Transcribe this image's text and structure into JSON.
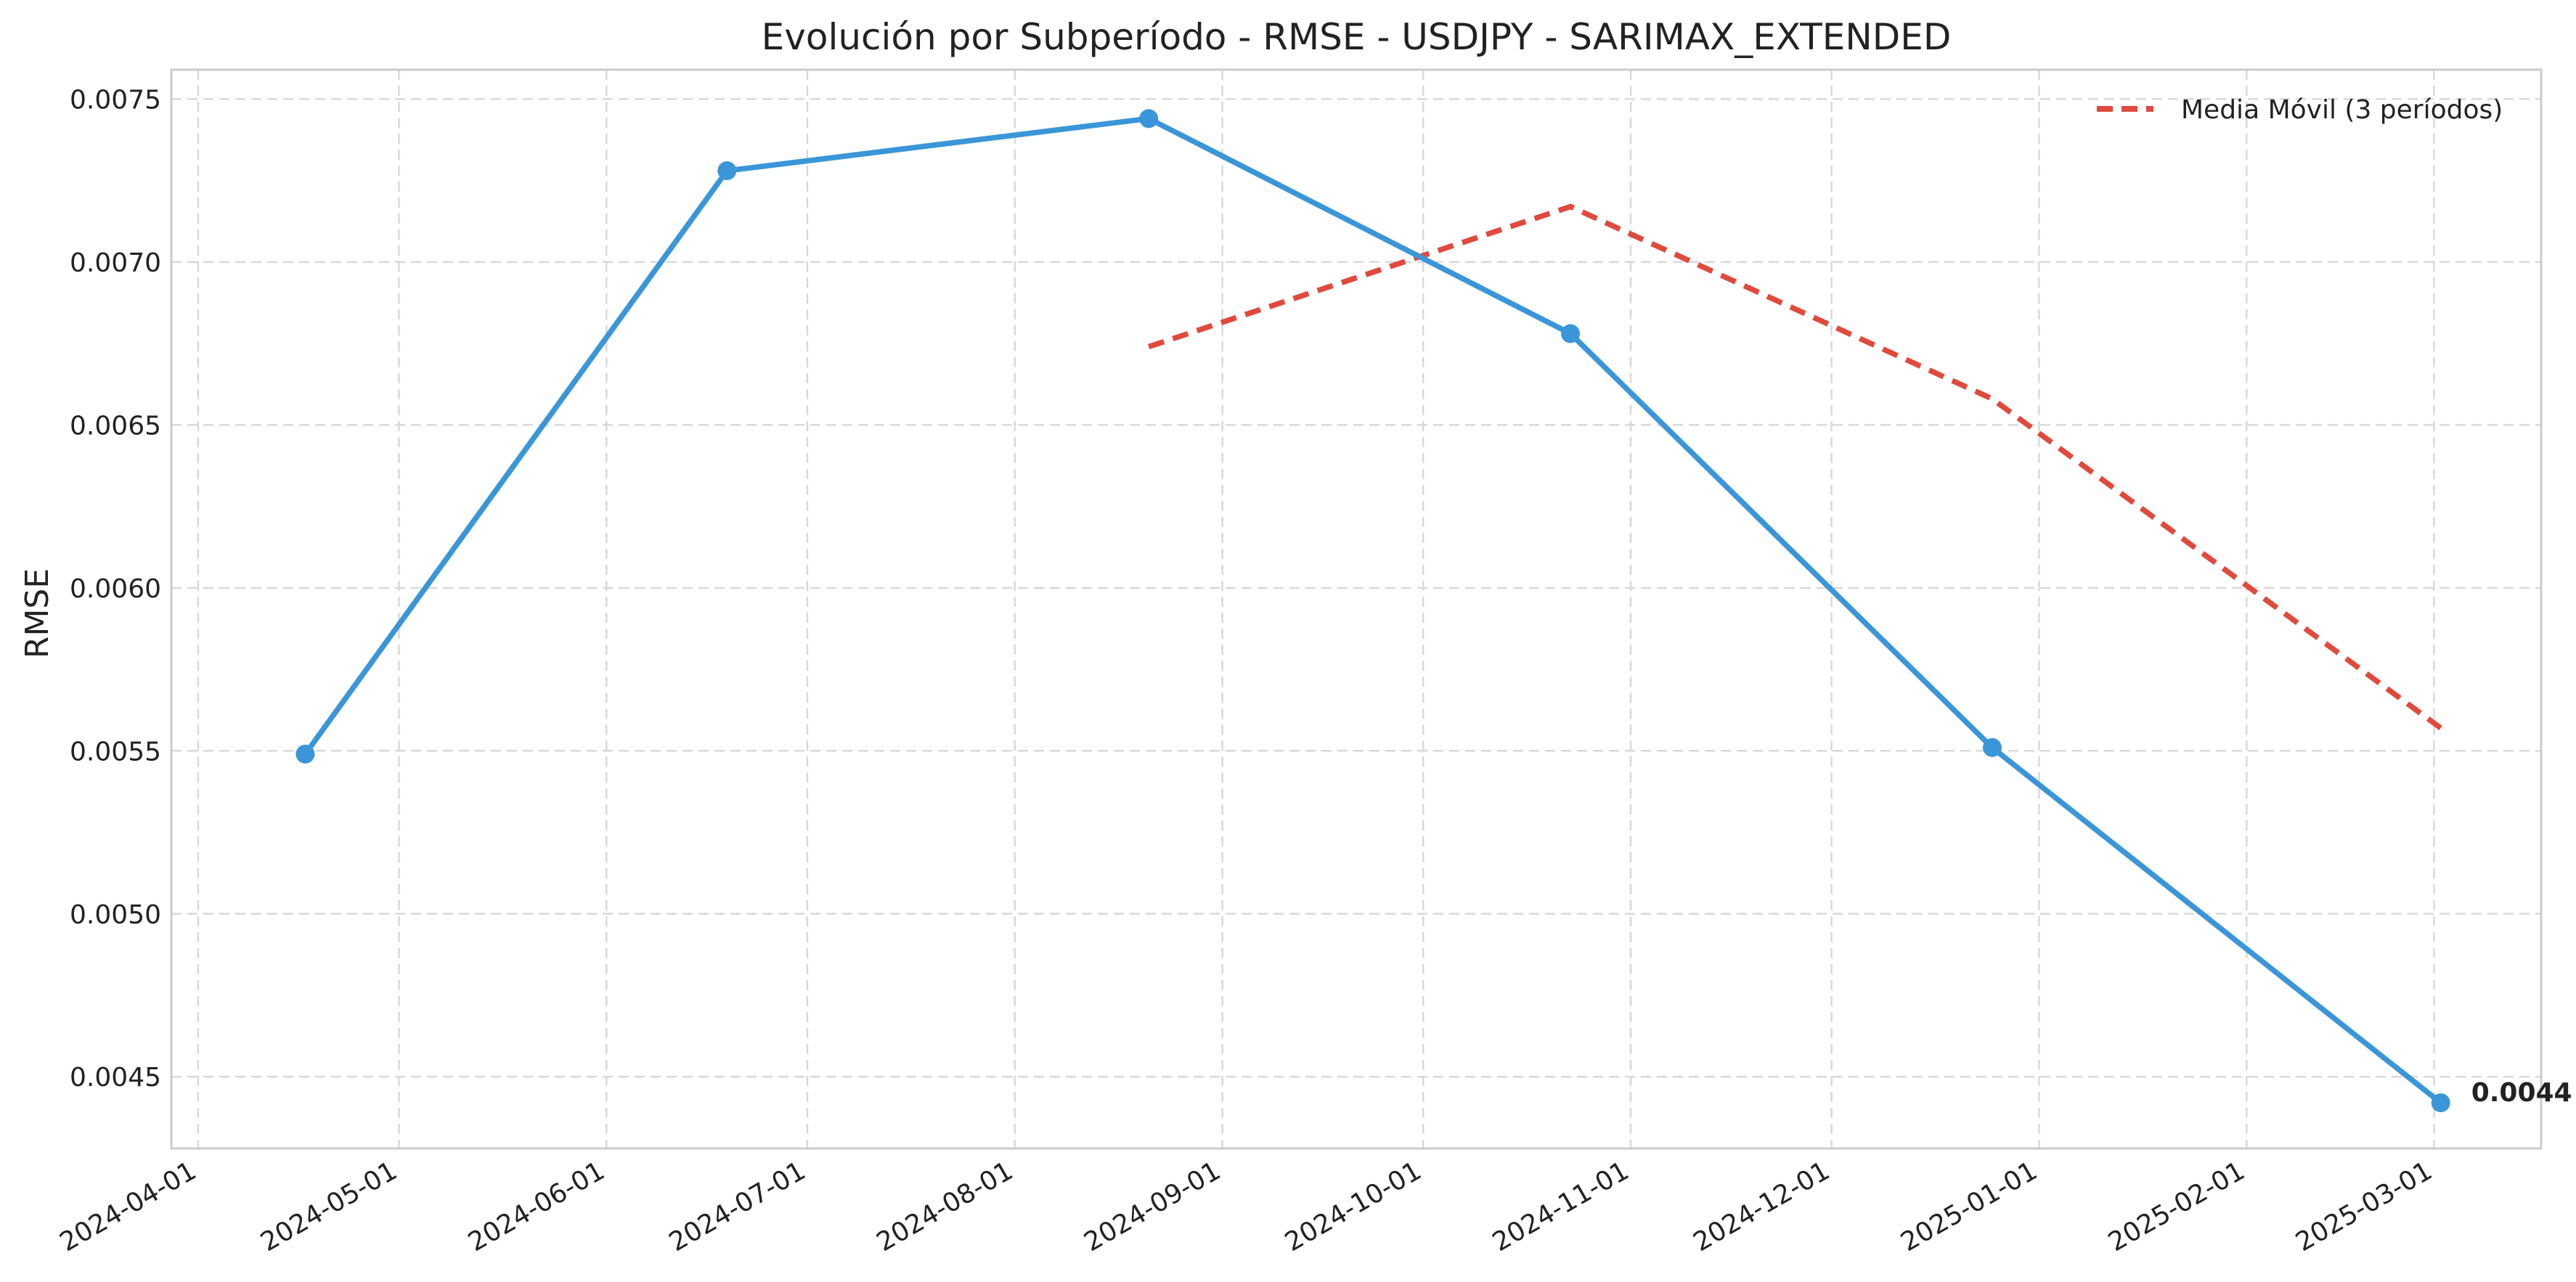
{
  "chart_data": {
    "type": "line",
    "title": "Evolución por Subperíodo - RMSE - USDJPY - SARIMAX_EXTENDED",
    "xlabel": "",
    "ylabel": "RMSE",
    "x_tick_labels": [
      "2024-04-01",
      "2024-05-01",
      "2024-06-01",
      "2024-07-01",
      "2024-08-01",
      "2024-09-01",
      "2024-10-01",
      "2024-11-01",
      "2024-12-01",
      "2025-01-01",
      "2025-02-01",
      "2025-03-01"
    ],
    "y_tick_labels": [
      "0.0045",
      "0.0050",
      "0.0055",
      "0.0060",
      "0.0065",
      "0.0070",
      "0.0075"
    ],
    "ylim": [
      0.00428,
      0.00759
    ],
    "xlim": [
      "2024-03-28",
      "2025-03-17"
    ],
    "grid": true,
    "legend_position": "top-right",
    "series": [
      {
        "color": "#3a96d8",
        "style": "solid",
        "marker": "circle",
        "points": [
          {
            "x": "2024-04-17",
            "y": 0.00549
          },
          {
            "x": "2024-06-19",
            "y": 0.00728
          },
          {
            "x": "2024-08-21",
            "y": 0.00744
          },
          {
            "x": "2024-10-23",
            "y": 0.00678
          },
          {
            "x": "2024-12-25",
            "y": 0.00551
          },
          {
            "x": "2025-03-02",
            "y": 0.00442
          }
        ]
      },
      {
        "name": "Media Móvil (3 períodos)",
        "color": "#e04a3c",
        "style": "dashed",
        "marker": "none",
        "points": [
          {
            "x": "2024-08-21",
            "y": 0.00674
          },
          {
            "x": "2024-10-23",
            "y": 0.00717
          },
          {
            "x": "2024-12-25",
            "y": 0.00658
          },
          {
            "x": "2025-03-02",
            "y": 0.00557
          }
        ]
      }
    ],
    "annotations": [
      {
        "text": "0.0044",
        "series_index": 0,
        "point_index": 5
      }
    ]
  }
}
